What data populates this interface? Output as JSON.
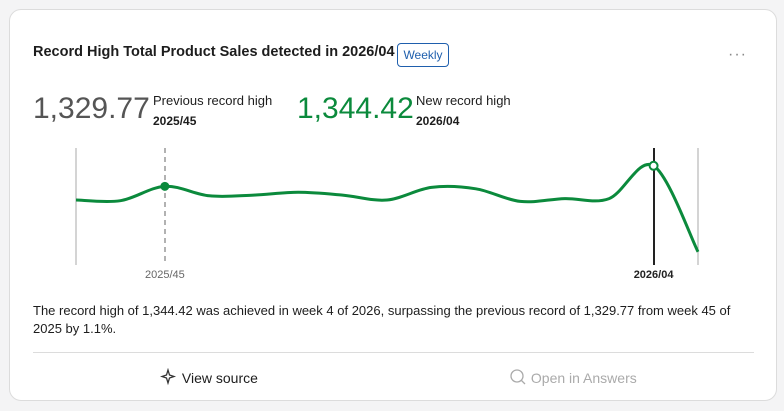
{
  "card": {
    "title": "Record High Total Product Sales detected in 2026/04",
    "badge": "Weekly",
    "menu": "···"
  },
  "kpis": [
    {
      "value": "1,329.77",
      "label": "Previous record high",
      "period": "2025/45"
    },
    {
      "value": "1,344.42",
      "label": "New record high",
      "period": "2026/04"
    }
  ],
  "chart_data": {
    "type": "line",
    "categories": [
      null,
      null,
      "2025/45",
      null,
      null,
      null,
      null,
      null,
      null,
      null,
      null,
      null,
      null,
      "2026/04",
      null
    ],
    "values": [
      1320,
      1319.5,
      1329.77,
      1323,
      1323.5,
      1325.5,
      1323.5,
      1320,
      1329,
      1328,
      1319,
      1321,
      1321,
      1344.42,
      1283
    ],
    "color": "#0b8a3c",
    "ylim": [
      1280,
      1350
    ]
  },
  "summary": "The record high of 1,344.42 was achieved in week 4 of 2026, surpassing the previous record of 1,329.77 from week 45 of 2025 by 1.1%.",
  "actions": [
    "View source",
    "Open in Answers"
  ]
}
